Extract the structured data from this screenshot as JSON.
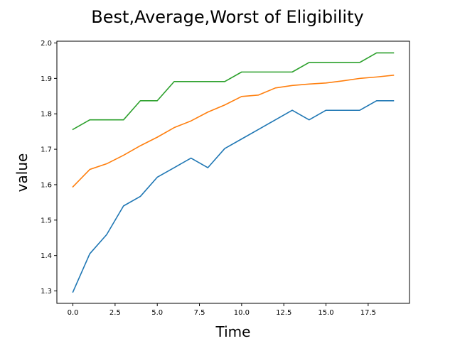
{
  "chart_data": {
    "type": "line",
    "title": "Best,Average,Worst of Eligibility",
    "xlabel": "Time",
    "ylabel": "value",
    "xlim": [
      -0.95,
      19.95
    ],
    "ylim": [
      1.265,
      2.005
    ],
    "xticks": [
      0,
      2.5,
      5,
      7.5,
      10,
      12.5,
      15,
      17.5
    ],
    "xtick_labels": [
      "0.0",
      "2.5",
      "5.0",
      "7.5",
      "10.0",
      "12.5",
      "15.0",
      "17.5"
    ],
    "yticks": [
      1.3,
      1.4,
      1.5,
      1.6,
      1.7,
      1.8,
      1.9,
      2.0
    ],
    "ytick_labels": [
      "1.3",
      "1.4",
      "1.5",
      "1.6",
      "1.7",
      "1.8",
      "1.9",
      "2.0"
    ],
    "grid": false,
    "x": [
      0,
      1,
      2,
      3,
      4,
      5,
      6,
      7,
      8,
      9,
      10,
      11,
      12,
      13,
      14,
      15,
      16,
      17,
      18,
      19
    ],
    "series": [
      {
        "color": "#1f77b4",
        "values": [
          1.297,
          1.405,
          1.459,
          1.54,
          1.567,
          1.621,
          1.648,
          1.675,
          1.648,
          1.702,
          1.729,
          1.756,
          1.783,
          1.81,
          1.783,
          1.81,
          1.81,
          1.81,
          1.837,
          1.837
        ]
      },
      {
        "color": "#ff7f0e",
        "values": [
          1.594,
          1.643,
          1.659,
          1.683,
          1.71,
          1.734,
          1.761,
          1.78,
          1.805,
          1.825,
          1.849,
          1.853,
          1.873,
          1.88,
          1.884,
          1.887,
          1.893,
          1.9,
          1.904,
          1.909
        ]
      },
      {
        "color": "#2ca02c",
        "values": [
          1.756,
          1.783,
          1.783,
          1.783,
          1.837,
          1.837,
          1.891,
          1.891,
          1.891,
          1.891,
          1.918,
          1.918,
          1.918,
          1.918,
          1.945,
          1.945,
          1.945,
          1.945,
          1.972,
          1.972
        ]
      }
    ]
  }
}
